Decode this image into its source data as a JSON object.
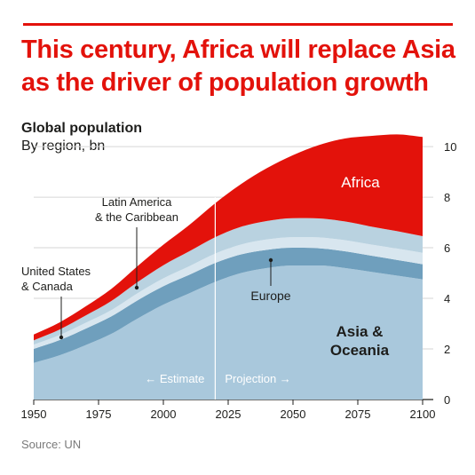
{
  "title": "This century, Africa will replace Asia as the driver of population growth",
  "subtitle": "Global population",
  "unit_label": "By region, bn",
  "source": "Source: UN",
  "colors": {
    "accent": "#e3120b",
    "africa": "#e3120b",
    "latin_america": "#b9d2e0",
    "north_america": "#d8e6ef",
    "europe": "#6f9fbd",
    "asia_oceania": "#a9c8dc",
    "text": "#1d1d1b"
  },
  "chart_data": {
    "type": "area",
    "stacked": true,
    "x": [
      1950,
      1960,
      1970,
      1980,
      1990,
      2000,
      2010,
      2020,
      2030,
      2040,
      2050,
      2060,
      2070,
      2080,
      2090,
      2100
    ],
    "series": [
      {
        "name": "Asia & Oceania",
        "values": [
          1.45,
          1.75,
          2.15,
          2.6,
          3.2,
          3.75,
          4.2,
          4.65,
          5.0,
          5.2,
          5.3,
          5.3,
          5.2,
          5.05,
          4.9,
          4.75
        ]
      },
      {
        "name": "Europe",
        "values": [
          0.55,
          0.6,
          0.65,
          0.69,
          0.72,
          0.73,
          0.73,
          0.75,
          0.74,
          0.72,
          0.7,
          0.68,
          0.66,
          0.64,
          0.62,
          0.6
        ]
      },
      {
        "name": "United States & Canada",
        "values": [
          0.17,
          0.2,
          0.23,
          0.25,
          0.28,
          0.31,
          0.34,
          0.37,
          0.39,
          0.41,
          0.42,
          0.43,
          0.44,
          0.44,
          0.45,
          0.45
        ]
      },
      {
        "name": "Latin America & the Caribbean",
        "values": [
          0.17,
          0.22,
          0.29,
          0.36,
          0.44,
          0.52,
          0.59,
          0.65,
          0.7,
          0.73,
          0.75,
          0.75,
          0.74,
          0.71,
          0.69,
          0.66
        ]
      },
      {
        "name": "Africa",
        "values": [
          0.23,
          0.28,
          0.36,
          0.48,
          0.63,
          0.81,
          1.04,
          1.34,
          1.69,
          2.09,
          2.49,
          2.9,
          3.28,
          3.58,
          3.82,
          3.92
        ]
      }
    ],
    "xticks": [
      "1950",
      "1975",
      "2000",
      "2025",
      "2050",
      "2075",
      "2100"
    ],
    "yticks": [
      "0",
      "2",
      "4",
      "6",
      "8",
      "10"
    ],
    "ylim": [
      0,
      10.6
    ],
    "xlim": [
      1950,
      2100
    ],
    "divider_year": 2020,
    "labels": {
      "africa": "Africa",
      "asia_line1": "Asia &",
      "asia_line2": "Oceania",
      "europe": "Europe",
      "latin_line1": "Latin America",
      "latin_line2": "& the Caribbean",
      "us_line1": "United States",
      "us_line2": "& Canada",
      "estimate": "← Estimate",
      "projection": "Projection →"
    },
    "grid": true,
    "legend": "direct labels"
  }
}
